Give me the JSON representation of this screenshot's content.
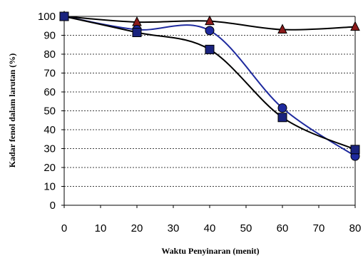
{
  "chart_data": {
    "type": "line",
    "xlabel": "Waktu Penyinaran (menit)",
    "ylabel": "Kadar fenol dalam larutan (%)",
    "xlim": [
      0,
      80
    ],
    "ylim": [
      0,
      100
    ],
    "x_ticks": [
      "0",
      "10",
      "20",
      "30",
      "40",
      "50",
      "60",
      "70",
      "80"
    ],
    "y_ticks": [
      "0",
      "10",
      "20",
      "30",
      "40",
      "50",
      "60",
      "70",
      "80",
      "90",
      "100"
    ],
    "grid": "horizontal dashed",
    "legend": "none",
    "series": [
      {
        "marker": "triangle",
        "marker_color": "#8B1A1A",
        "line_color": "#000000",
        "x": [
          0,
          20,
          40,
          60,
          80
        ],
        "y": [
          100,
          97,
          97.5,
          93,
          94.5
        ]
      },
      {
        "marker": "circle",
        "marker_color": "#1E2A9E",
        "line_color": "#1E2A9E",
        "x": [
          0,
          20,
          40,
          60,
          80
        ],
        "y": [
          100,
          93,
          92.5,
          51.5,
          26
        ]
      },
      {
        "marker": "square",
        "marker_color": "#1A237E",
        "line_color": "#000000",
        "x": [
          0,
          20,
          40,
          60,
          80
        ],
        "y": [
          100,
          91.5,
          82.5,
          46.5,
          29.5
        ]
      }
    ]
  }
}
